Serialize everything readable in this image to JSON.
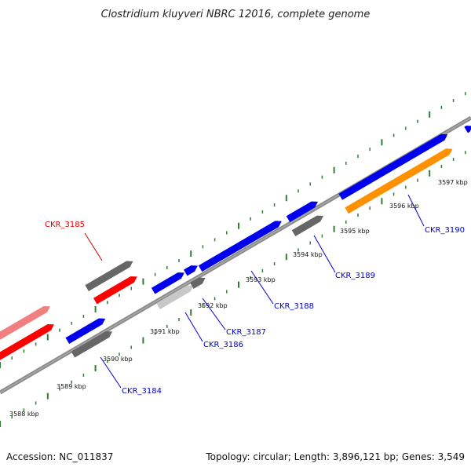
{
  "title": "Clostridium kluyveri NBRC 12016, complete genome",
  "accession": "Accession: NC_011837",
  "topology": "Topology: circular; Length: 3,896,121 bp; Genes: 3,549",
  "colors": {
    "backbone": "#808080",
    "ticks_green": "#2e7d32",
    "blue_gene": "#0000ee",
    "red_gene": "#ff0000",
    "pink_gene": "#f08080",
    "dark_gray_gene": "#666666",
    "light_gray_gene": "#c8c8c8",
    "orange_gene": "#ff9000",
    "label_blue": "#0000cc",
    "label_red": "#dd0000"
  },
  "kbp_labels": [
    "3588 kbp",
    "3589 kbp",
    "3590 kbp",
    "3591 kbp",
    "3592 kbp",
    "3593 kbp",
    "3594 kbp",
    "3595 kbp",
    "3596 kbp",
    "3597 kbp"
  ],
  "gene_labels": [
    {
      "text": "CKR_3185",
      "color": "red"
    },
    {
      "text": "CKR_3184",
      "color": "blue"
    },
    {
      "text": "CKR_3186",
      "color": "blue"
    },
    {
      "text": "CKR_3187",
      "color": "blue"
    },
    {
      "text": "CKR_3188",
      "color": "blue"
    },
    {
      "text": "CKR_3189",
      "color": "blue"
    },
    {
      "text": "CKR_3190",
      "color": "blue"
    }
  ]
}
